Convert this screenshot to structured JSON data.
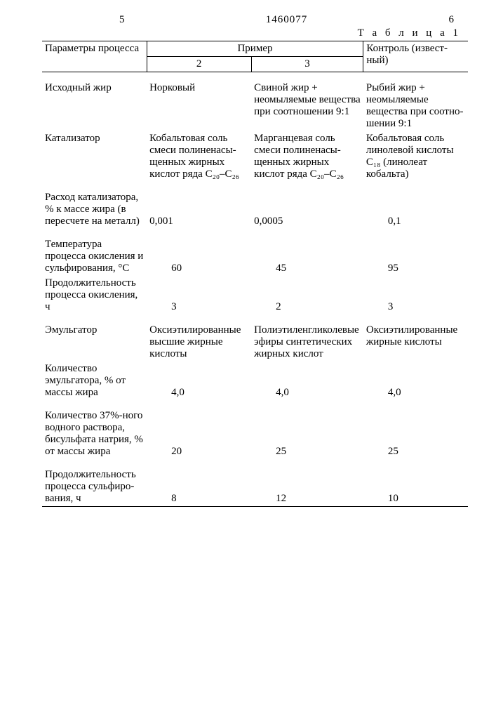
{
  "header": {
    "page_left": "5",
    "doc_number": "1460077",
    "page_right": "6",
    "table_caption": "Т а б л и ц а  1"
  },
  "thead": {
    "param_label": "Параметры процесса",
    "example_label": "Пример",
    "col2": "2",
    "col3": "3",
    "control": "Контроль (извест­ный)"
  },
  "rows": {
    "r1": {
      "label": "Исходный жир",
      "v2": "Норковый",
      "v3": "Свиной жир + неомыляемые вещества при соотношении 9:1",
      "vc": "Рыбий жир + неомыляемые вещества при соотно­шении 9:1"
    },
    "r2": {
      "label": "Катализатор",
      "v2": "Кобальтовая соль смеси полиненасы­щенных жир­ных кислот ряда C₂₀–C₂₆",
      "v3": "Марганцевая соль смеси полиненасы­щенных жир­ных кислот ряда C₂₀–C₂₆",
      "vc": "Кобальтовая соль линоле­вой кислоты C₁₈ (линоле­ат кобальта)"
    },
    "r3": {
      "label": "Расход ката­лизатора, % к массе жира (в пересчете на металл)",
      "v2": "0,001",
      "v3": "0,0005",
      "vc": "0,1"
    },
    "r4": {
      "label": "Температура процесса оки­сления и су­льфирования, °С",
      "v2": "60",
      "v3": "45",
      "vc": "95"
    },
    "r5": {
      "label": "Продолжитель­ность процес­са окисления, ч",
      "v2": "3",
      "v3": "2",
      "vc": "3"
    },
    "r6": {
      "label": "Эмульгатор",
      "v2": "Оксиэтилиро­ванные выс­шие жирные кислоты",
      "v3": "Полиэтилен­гликолевые эфиры синте­тических жирных кислот",
      "vc": "Оксиэтилиро­ванные жирные кислоты"
    },
    "r7": {
      "label": "Количество эмульгатора, % от массы жира",
      "v2": "4,0",
      "v3": "4,0",
      "vc": "4,0"
    },
    "r8": {
      "label": "Количество 37%-ного водного раст­вора, бисуль­фата натрия, % от массы жира",
      "v2": "20",
      "v3": "25",
      "vc": "25"
    },
    "r9": {
      "label": "Продолжитель­ность процес­са сульфиро­вания, ч",
      "v2": "8",
      "v3": "12",
      "vc": "10"
    }
  }
}
